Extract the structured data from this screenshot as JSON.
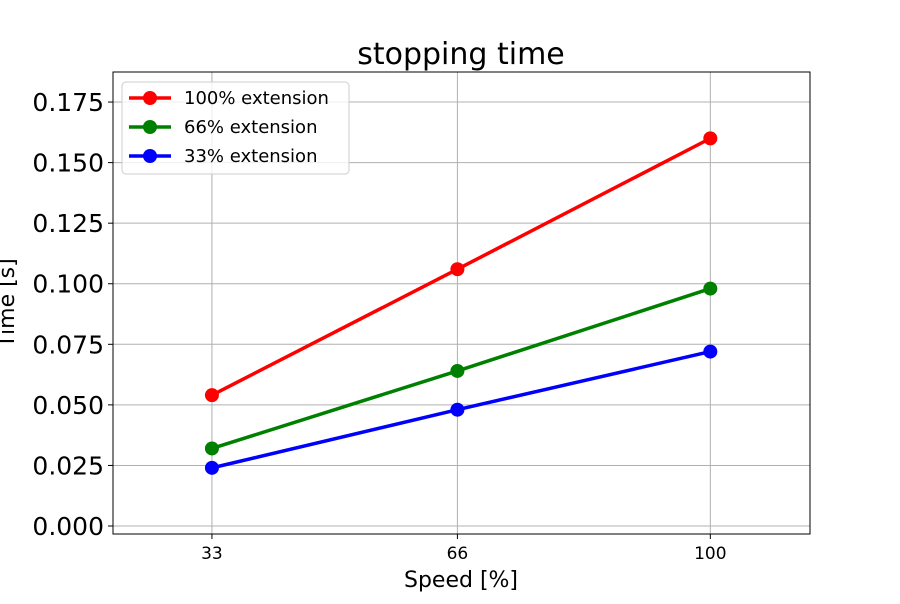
{
  "chart_data": {
    "type": "line",
    "title": "stopping time",
    "xlabel": "Speed [%]",
    "ylabel": "Time [s]",
    "x": [
      33,
      66,
      100
    ],
    "xticks": [
      "33",
      "66",
      "100"
    ],
    "yticks": [
      "0.000",
      "0.025",
      "0.050",
      "0.075",
      "0.100",
      "0.125",
      "0.150",
      "0.175"
    ],
    "xlim": [
      19.7,
      113.4
    ],
    "ylim": [
      -0.0033,
      0.1874
    ],
    "grid": true,
    "legend_position": "top-left",
    "series": [
      {
        "name": "100% extension",
        "color": "#ff0000",
        "values": [
          0.054,
          0.106,
          0.16
        ]
      },
      {
        "name": "66% extension",
        "color": "#008000",
        "values": [
          0.032,
          0.064,
          0.098
        ]
      },
      {
        "name": "33% extension",
        "color": "#0000ff",
        "values": [
          0.024,
          0.048,
          0.072
        ]
      }
    ]
  }
}
